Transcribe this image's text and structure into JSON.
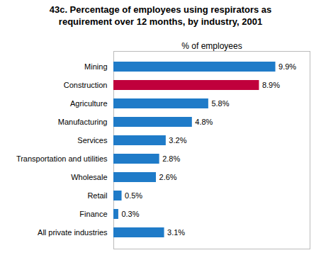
{
  "chart_data": {
    "type": "bar",
    "orientation": "horizontal",
    "title": "43c. Percentage of employees using respirators as\nrequirement over 12 months, by industry, 2001",
    "xlabel": "% of employees",
    "categories": [
      "All private industries",
      "Finance",
      "Retail",
      "Wholesale",
      "Transportation and utilities",
      "Services",
      "Manufacturing",
      "Agriculture",
      "Construction",
      "Mining"
    ],
    "values": [
      3.1,
      0.3,
      0.5,
      2.6,
      2.8,
      3.2,
      4.8,
      5.8,
      8.9,
      9.9
    ],
    "value_labels": [
      "3.1%",
      "0.3%",
      "0.5%",
      "2.6%",
      "2.8%",
      "3.2%",
      "4.8%",
      "5.8%",
      "8.9%",
      "9.9%"
    ],
    "data_labels": true,
    "colors": [
      "#1f7bc8",
      "#1f7bc8",
      "#1f7bc8",
      "#1f7bc8",
      "#1f7bc8",
      "#1f7bc8",
      "#1f7bc8",
      "#1f7bc8",
      "#c0003c",
      "#1f7bc8"
    ],
    "xlim": [
      0,
      12
    ],
    "tick_labels": "y",
    "grid": false
  }
}
